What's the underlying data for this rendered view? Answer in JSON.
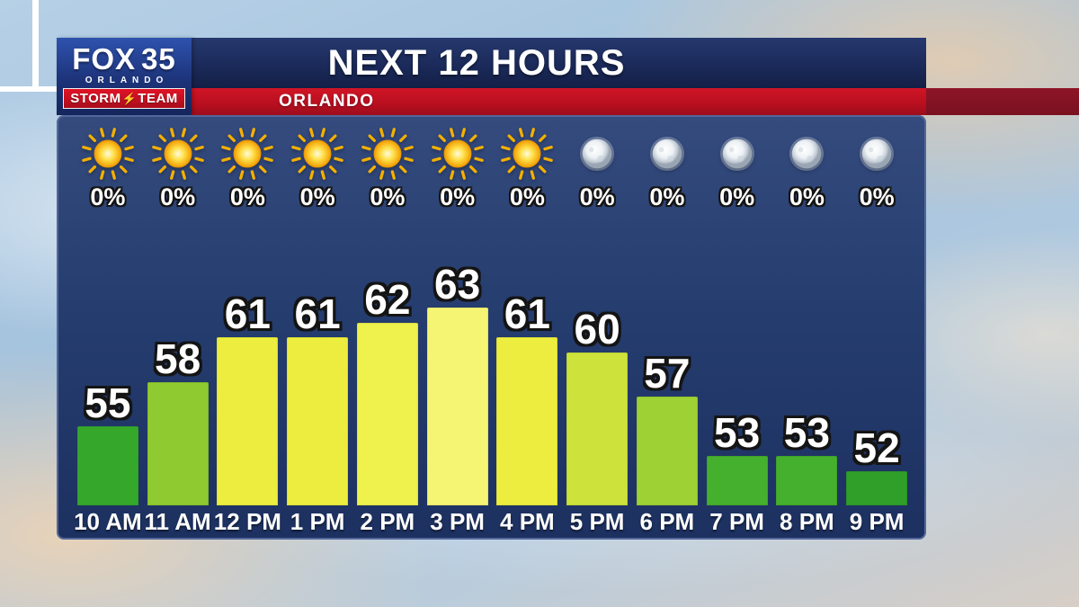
{
  "header": {
    "title": "NEXT 12 HOURS",
    "location": "ORLANDO"
  },
  "logo": {
    "brand": "FOX",
    "number": "35",
    "city": "ORLANDO",
    "storm": "STORM",
    "team": "TEAM"
  },
  "chart_data": {
    "type": "bar",
    "title": "NEXT 12 HOURS",
    "subtitle": "ORLANDO",
    "categories": [
      "10 AM",
      "11 AM",
      "12 PM",
      "1 PM",
      "2 PM",
      "3 PM",
      "4 PM",
      "5 PM",
      "6 PM",
      "7 PM",
      "8 PM",
      "9 PM"
    ],
    "series": [
      {
        "name": "Temperature (F)",
        "values": [
          55,
          58,
          61,
          61,
          62,
          63,
          61,
          60,
          57,
          53,
          53,
          52
        ]
      },
      {
        "name": "Precipitation chance",
        "values": [
          "0%",
          "0%",
          "0%",
          "0%",
          "0%",
          "0%",
          "0%",
          "0%",
          "0%",
          "0%",
          "0%",
          "0%"
        ]
      }
    ],
    "icons": [
      "sun",
      "sun",
      "sun",
      "sun",
      "sun",
      "sun",
      "sun",
      "moon",
      "moon",
      "moon",
      "moon",
      "moon"
    ],
    "bar_colors": [
      "#35a82c",
      "#8fca30",
      "#eced3e",
      "#eced3e",
      "#eff14c",
      "#f5f573",
      "#eced3e",
      "#cde23a",
      "#9ed133",
      "#45b02d",
      "#45b02d",
      "#2f9f2a"
    ],
    "ylim": [
      50,
      65
    ],
    "grid": false,
    "legend_position": "none"
  },
  "colors": {
    "panel_top": "#354b7e",
    "panel_bottom": "#1d3161",
    "header_navy": "#1b2a5a",
    "red_bar": "#b80f1f",
    "red_bar_dark": "#7a1120",
    "sun": "#f5b000",
    "moon": "#dfe6ec",
    "text": "#ffffff"
  }
}
